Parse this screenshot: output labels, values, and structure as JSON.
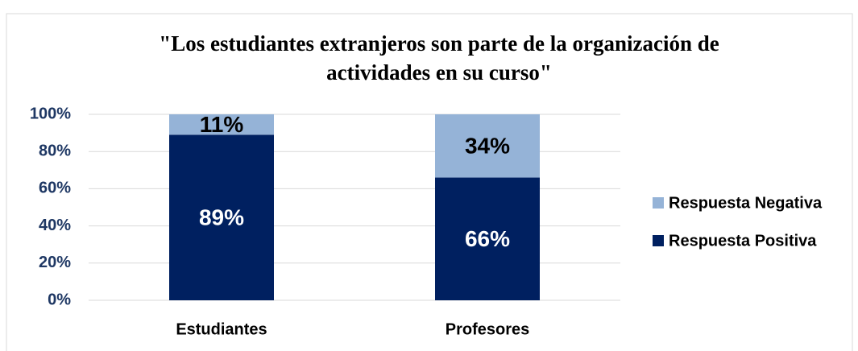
{
  "chart_data": {
    "type": "stacked_bar",
    "title": "\"Los estudiantes extranjeros son parte de la organización de actividades en su curso\"",
    "categories": [
      "Estudiantes",
      "Profesores"
    ],
    "series": [
      {
        "name": "Respuesta Positiva",
        "color": "#002060",
        "values": [
          89,
          66
        ],
        "value_labels": [
          "89%",
          "66%"
        ]
      },
      {
        "name": "Respuesta Negativa",
        "color": "#95b3d7",
        "values": [
          11,
          34
        ],
        "value_labels": [
          "11%",
          "34%"
        ]
      }
    ],
    "ylim": [
      0,
      100
    ],
    "yticks": [
      {
        "value": 0,
        "label": "0%"
      },
      {
        "value": 20,
        "label": "20%"
      },
      {
        "value": 40,
        "label": "40%"
      },
      {
        "value": 60,
        "label": "60%"
      },
      {
        "value": 80,
        "label": "80%"
      },
      {
        "value": 100,
        "label": "100%"
      }
    ],
    "grid": true,
    "legend": "right"
  }
}
